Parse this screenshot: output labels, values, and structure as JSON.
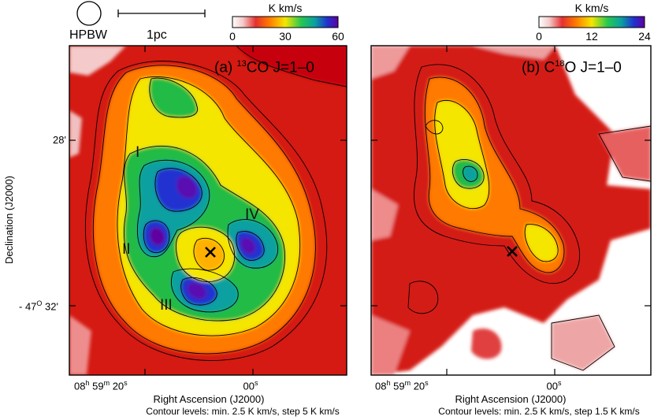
{
  "beam_label": "HPBW",
  "scale_label": "1pc",
  "colorbar_unit_a": "K km/s",
  "colorbar_unit_b": "K km/s",
  "colormap": [
    "#ffffff",
    "#f4c8c8",
    "#e63030",
    "#c80000",
    "#ff7a00",
    "#f5e600",
    "#28c850",
    "#0aa0a0",
    "#2030d0",
    "#6000a0"
  ],
  "chart_data": [
    {
      "type": "heatmap",
      "panel": "a",
      "title_prefix": "(a) ",
      "title_sup": "13",
      "title_suffix": "CO J=1–0",
      "colorbar": {
        "min": 0,
        "max": 60,
        "ticks": [
          "0",
          "30",
          "60"
        ],
        "unit": "K km/s"
      },
      "xlabel": "Right Ascension (J2000)",
      "ylabel": "Declination (J2000)",
      "xticks": {
        "hours": "08",
        "h_unit": "h",
        "minutes": "59",
        "m_unit": "m",
        "sec1": "20",
        "s_unit": "s",
        "sec2": "00"
      },
      "yticks": [
        "28'",
        "- 47",
        "O",
        " 32'"
      ],
      "contours": {
        "min": 2.5,
        "step": 5,
        "unit": "K km/s",
        "text": "Contour levels:  min. 2.5 K km/s,  step  5 K km/s"
      },
      "annotations": [
        "I",
        "II",
        "III",
        "IV"
      ],
      "marker": "×",
      "peak_value": 55
    },
    {
      "type": "heatmap",
      "panel": "b",
      "title_prefix": "(b) C",
      "title_sup": "18",
      "title_suffix": "O J=1–0",
      "colorbar": {
        "min": 0,
        "max": 24,
        "ticks": [
          "0",
          "12",
          "24"
        ],
        "unit": "K km/s"
      },
      "xlabel": "Right Ascension (J2000)",
      "xticks": {
        "hours": "08",
        "h_unit": "h",
        "minutes": "59",
        "m_unit": "m",
        "sec1": "20",
        "s_unit": "s",
        "sec2": "00"
      },
      "contours": {
        "min": 2.5,
        "step": 1.5,
        "unit": "K km/s",
        "text": "Contour levels:  min. 2.5 K km/s,  step  1.5 K km/s"
      },
      "marker": "×",
      "peak_value": 16
    }
  ]
}
